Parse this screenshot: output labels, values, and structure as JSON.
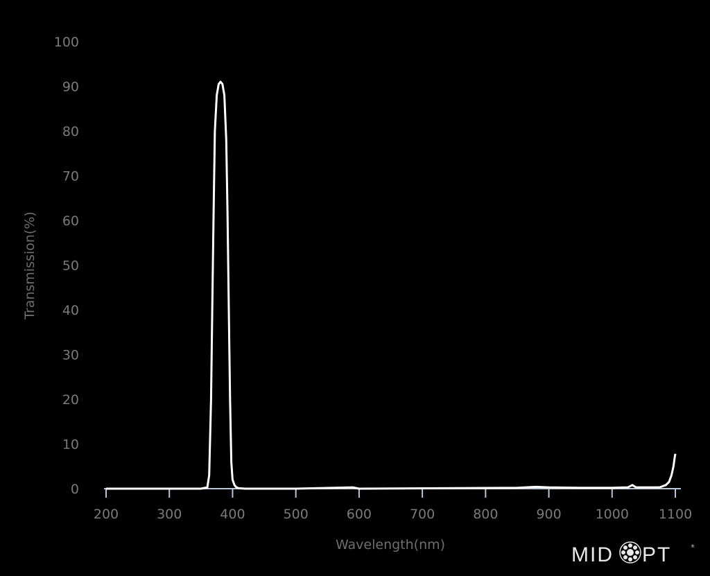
{
  "chart_data": {
    "type": "line",
    "title": "",
    "xlabel": "Wavelength(nm)",
    "ylabel": "Transmission(%)",
    "xlim": [
      200,
      1100
    ],
    "ylim": [
      0,
      100
    ],
    "xticks": [
      200,
      300,
      400,
      500,
      600,
      700,
      800,
      900,
      1000,
      1100
    ],
    "yticks": [
      0,
      10,
      20,
      30,
      40,
      50,
      60,
      70,
      80,
      90,
      100
    ],
    "grid": false,
    "colors": {
      "background": "#000000",
      "line": "#ffffff",
      "axis": "#b8c8dc",
      "tick_label": "#7a7a7a"
    },
    "series": [
      {
        "x": [
          200,
          350,
          360,
          363,
          366,
          368,
          370,
          372,
          375,
          378,
          381,
          384,
          387,
          390,
          392,
          394,
          396,
          398,
          400,
          403,
          406,
          410,
          420,
          500,
          590,
          600,
          850,
          880,
          900,
          950,
          1000,
          1025,
          1032,
          1038,
          1050,
          1075,
          1085,
          1090,
          1094,
          1097,
          1099,
          1100
        ],
        "y": [
          0,
          0,
          0.3,
          3,
          20,
          42,
          62,
          80,
          88,
          90.5,
          91,
          90.5,
          88,
          78,
          62,
          40,
          20,
          6,
          2,
          0.8,
          0.3,
          0.1,
          0,
          0,
          0.3,
          0,
          0.2,
          0.4,
          0.3,
          0.2,
          0.2,
          0.3,
          0.8,
          0.3,
          0.3,
          0.3,
          0.8,
          1.5,
          3,
          5,
          7,
          7.8
        ]
      }
    ]
  },
  "logo": {
    "text": "MIDOPT"
  }
}
